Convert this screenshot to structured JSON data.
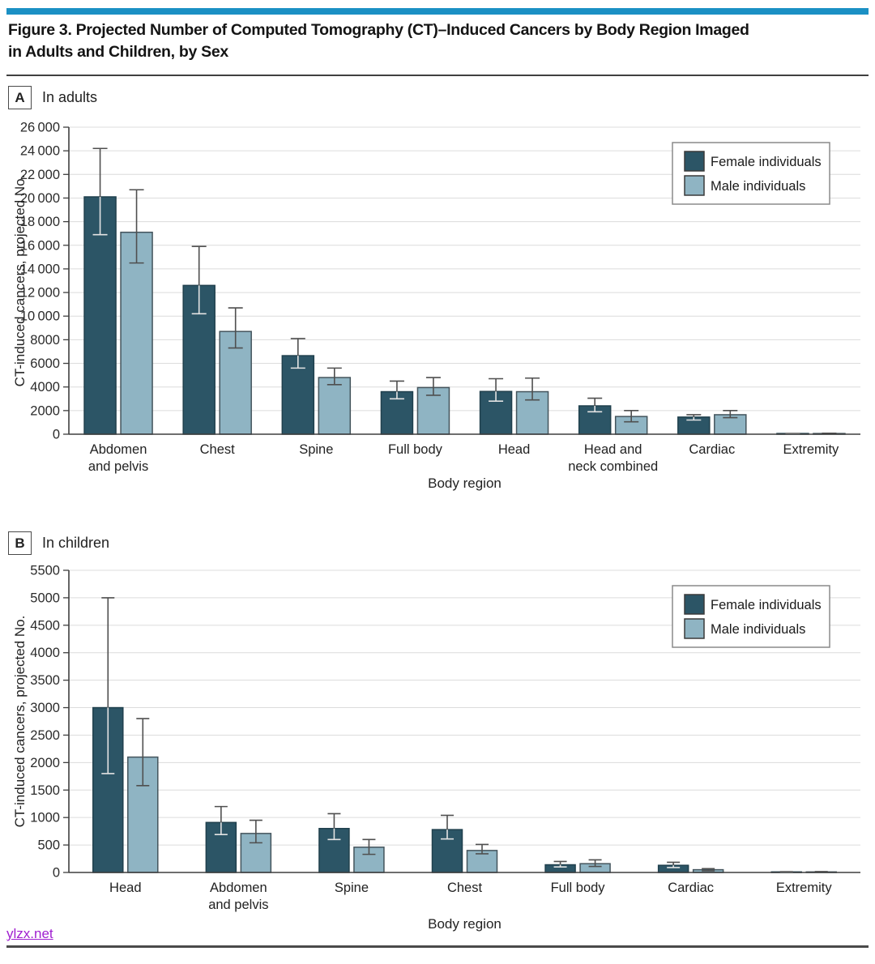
{
  "page": {
    "title_line1": "Figure 3. Projected Number of Computed Tomography (CT)–Induced Cancers by Body Region Imaged",
    "title_line2": "in Adults and Children, by Sex",
    "footer_link": "ylzx.net"
  },
  "colors": {
    "accent_bar": "#1b90c4",
    "female": "#2c5566",
    "female_border": "#20404d",
    "male": "#8fb4c3",
    "male_border": "#44545c",
    "error_bar": "#4f4f4f",
    "error_bar_on_dark": "#e3e3e3",
    "gridline": "#dcdcdc",
    "axis": "#3f3f3f",
    "link": "#a020d0"
  },
  "chart_data": [
    {
      "type": "bar",
      "panel_label": "A",
      "panel_title": "In adults",
      "xlabel": "Body region",
      "ylabel": "CT-induced cancers, projected No.",
      "ylim": [
        0,
        26000
      ],
      "ytick_step": 2000,
      "ytick_labels": [
        "0",
        "2000",
        "4000",
        "6000",
        "8000",
        "10 000",
        "12 000",
        "14 000",
        "16 000",
        "18 000",
        "20 000",
        "22 000",
        "24 000",
        "26 000"
      ],
      "grid": true,
      "legend_position": "top-right",
      "categories": [
        [
          "Abdomen",
          "and pelvis"
        ],
        [
          "Chest"
        ],
        [
          "Spine"
        ],
        [
          "Full body"
        ],
        [
          "Head"
        ],
        [
          "Head and",
          "neck combined"
        ],
        [
          "Cardiac"
        ],
        [
          "Extremity"
        ]
      ],
      "series": [
        {
          "name": "Female individuals",
          "values": [
            20100,
            12600,
            6650,
            3600,
            3620,
            2400,
            1450,
            60
          ],
          "err_lo": [
            16900,
            10200,
            5600,
            3000,
            2800,
            1900,
            1200,
            40
          ],
          "err_hi": [
            24200,
            15900,
            8100,
            4500,
            4700,
            3050,
            1650,
            80
          ]
        },
        {
          "name": "Male individuals",
          "values": [
            17100,
            8700,
            4800,
            3950,
            3600,
            1500,
            1650,
            60
          ],
          "err_lo": [
            14500,
            7300,
            4200,
            3300,
            2900,
            1050,
            1400,
            40
          ],
          "err_hi": [
            20700,
            10700,
            5600,
            4800,
            4750,
            2000,
            2000,
            80
          ]
        }
      ]
    },
    {
      "type": "bar",
      "panel_label": "B",
      "panel_title": "In children",
      "xlabel": "Body region",
      "ylabel": "CT-induced cancers, projected No.",
      "ylim": [
        0,
        5500
      ],
      "ytick_step": 500,
      "ytick_labels": [
        "0",
        "500",
        "1000",
        "1500",
        "2000",
        "2500",
        "3000",
        "3500",
        "4000",
        "4500",
        "5000",
        "5500"
      ],
      "grid": true,
      "legend_position": "top-right",
      "categories": [
        [
          "Head"
        ],
        [
          "Abdomen",
          "and pelvis"
        ],
        [
          "Spine"
        ],
        [
          "Chest"
        ],
        [
          "Full body"
        ],
        [
          "Cardiac"
        ],
        [
          "Extremity"
        ]
      ],
      "series": [
        {
          "name": "Female individuals",
          "values": [
            3000,
            910,
            800,
            780,
            140,
            130,
            10
          ],
          "err_lo": [
            1800,
            690,
            600,
            610,
            100,
            90,
            5
          ],
          "err_hi": [
            5000,
            1200,
            1070,
            1040,
            200,
            185,
            15
          ]
        },
        {
          "name": "Male individuals",
          "values": [
            2100,
            710,
            460,
            400,
            160,
            50,
            10
          ],
          "err_lo": [
            1580,
            540,
            330,
            340,
            110,
            30,
            5
          ],
          "err_hi": [
            2800,
            950,
            600,
            510,
            230,
            70,
            15
          ]
        }
      ]
    }
  ]
}
